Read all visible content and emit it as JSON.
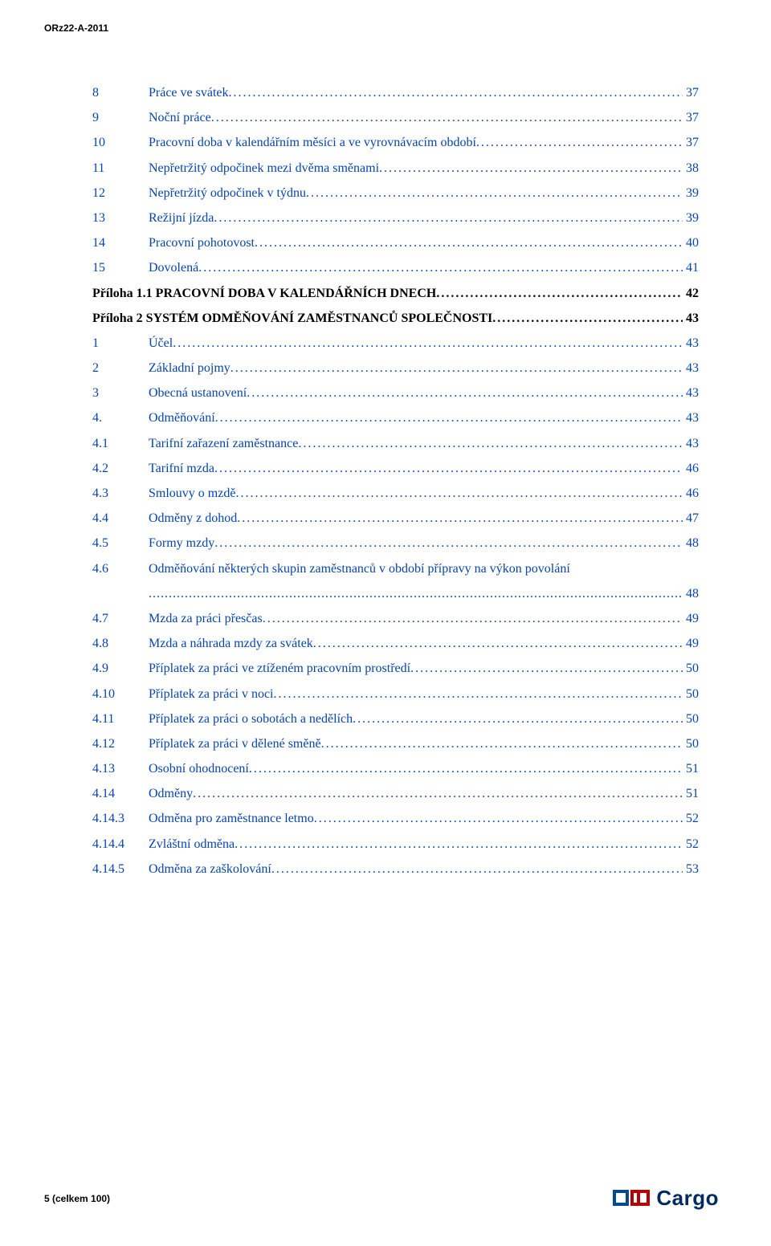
{
  "doc": {
    "header_code": "ORz22-A-2011",
    "footer": "5 (celkem 100)",
    "logo_text": "Cargo",
    "logo_blue": "#004a8f",
    "logo_red": "#b80000"
  },
  "toc": [
    {
      "num": "8",
      "title": "Práce ve svátek",
      "page": "37",
      "bold": false
    },
    {
      "num": "9",
      "title": "Noční práce",
      "page": "37",
      "bold": false
    },
    {
      "num": "10",
      "title": "Pracovní doba v kalendářním měsíci a ve vyrovnávacím období",
      "page": "37",
      "bold": false
    },
    {
      "num": "11",
      "title": "Nepřetržitý odpočinek mezi dvěma směnami",
      "page": "38",
      "bold": false
    },
    {
      "num": "12",
      "title": "Nepřetržitý odpočinek v týdnu",
      "page": "39",
      "bold": false
    },
    {
      "num": "13",
      "title": "Režijní jízda",
      "page": "39",
      "bold": false
    },
    {
      "num": "14",
      "title": "Pracovní pohotovost",
      "page": "40",
      "bold": false
    },
    {
      "num": "15",
      "title": "Dovolená",
      "page": "41",
      "bold": false
    },
    {
      "num": "",
      "title": "Příloha 1.1 PRACOVNÍ DOBA V KALENDÁŘNÍCH DNECH",
      "page": "42",
      "bold": true,
      "no_num_col": true
    },
    {
      "num": "",
      "title": "Příloha 2 SYSTÉM ODMĚŇOVÁNÍ ZAMĚSTNANCŮ SPOLEČNOSTI",
      "page": "43",
      "bold": true,
      "no_num_col": true
    },
    {
      "num": "1",
      "title": "Účel",
      "page": "43",
      "bold": false
    },
    {
      "num": "2",
      "title": "Základní pojmy",
      "page": "43",
      "bold": false
    },
    {
      "num": "3",
      "title": "Obecná ustanovení",
      "page": "43",
      "bold": false
    },
    {
      "num": "4.",
      "title": "Odměňování",
      "page": "43",
      "bold": false
    },
    {
      "num": "4.1",
      "title": "Tarifní zařazení zaměstnance",
      "page": "43",
      "bold": false
    },
    {
      "num": "4.2",
      "title": "Tarifní mzda",
      "page": "46",
      "bold": false
    },
    {
      "num": "4.3",
      "title": "Smlouvy o mzdě",
      "page": "46",
      "bold": false
    },
    {
      "num": "4.4",
      "title": "Odměny z dohod",
      "page": "47",
      "bold": false
    },
    {
      "num": "4.5",
      "title": "Formy mzdy",
      "page": "48",
      "bold": false
    },
    {
      "num": "4.6",
      "title": "Odměňování některých skupin zaměstnanců v období přípravy na výkon povolání",
      "page": "48",
      "bold": false,
      "multiline": true
    },
    {
      "num": "4.7",
      "title": "Mzda za práci přesčas",
      "page": "49",
      "bold": false
    },
    {
      "num": "4.8",
      "title": "Mzda a náhrada mzdy za svátek",
      "page": "49",
      "bold": false
    },
    {
      "num": "4.9",
      "title": "Příplatek za práci ve ztíženém pracovním prostředí",
      "page": "50",
      "bold": false
    },
    {
      "num": "4.10",
      "title": "Příplatek za práci v noci",
      "page": "50",
      "bold": false
    },
    {
      "num": "4.11",
      "title": "Příplatek za práci o sobotách a nedělích",
      "page": "50",
      "bold": false
    },
    {
      "num": "4.12",
      "title": "Příplatek za práci v dělené směně",
      "page": "50",
      "bold": false
    },
    {
      "num": "4.13",
      "title": "Osobní ohodnocení",
      "page": "51",
      "bold": false
    },
    {
      "num": "4.14",
      "title": "Odměny",
      "page": "51",
      "bold": false
    },
    {
      "num": "4.14.3",
      "title": "Odměna pro zaměstnance letmo",
      "page": "52",
      "bold": false
    },
    {
      "num": "4.14.4",
      "title": "Zvláštní odměna",
      "page": "52",
      "bold": false
    },
    {
      "num": "4.14.5",
      "title": "Odměna za zaškolování",
      "page": "53",
      "bold": false
    }
  ]
}
